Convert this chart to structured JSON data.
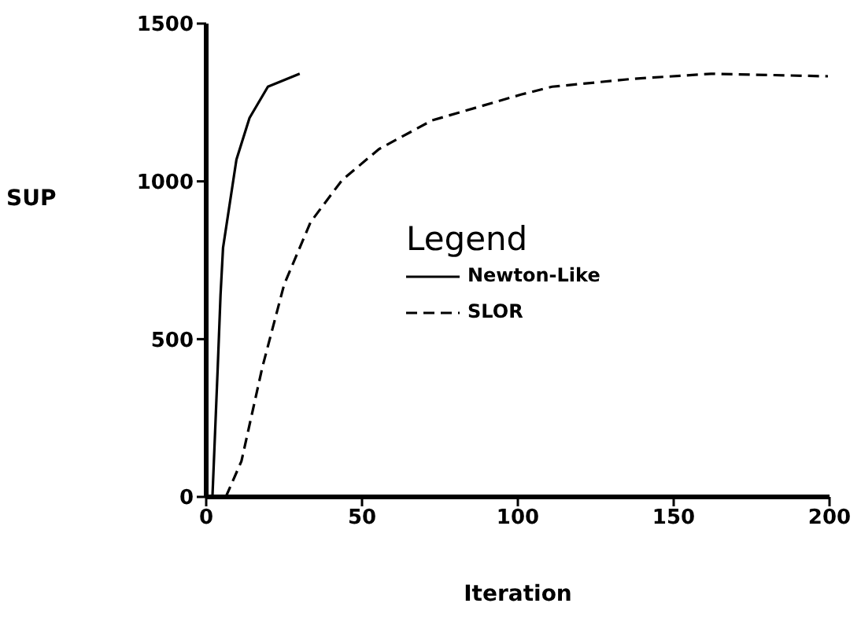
{
  "chart_data": {
    "type": "line",
    "xlabel": "Iteration",
    "ylabel": "SUP",
    "legend_title": "Legend",
    "legend": "center",
    "xlim": [
      0,
      200
    ],
    "ylim": [
      0,
      1500
    ],
    "xticks": [
      0,
      50,
      100,
      150,
      200
    ],
    "yticks": [
      0,
      500,
      1000,
      1500
    ],
    "grid": false,
    "marker": "none",
    "series": [
      {
        "name": "Newton-Like",
        "color": "#000000",
        "line_style": "solid",
        "x": [
          2,
          3.7,
          4.6,
          5.4,
          9.7,
          13.9,
          19.8,
          30
        ],
        "values": [
          0,
          410,
          640,
          789,
          1069,
          1201,
          1300,
          1341
        ]
      },
      {
        "name": "SLOR",
        "color": "#000000",
        "line_style": "dashed",
        "x": [
          6.3,
          11.3,
          18,
          25,
          33.5,
          43.6,
          55.4,
          72.4,
          101,
          111,
          137,
          162,
          199.5
        ],
        "values": [
          0,
          113,
          410,
          673,
          871,
          1004,
          1102,
          1193,
          1275,
          1300,
          1325,
          1341,
          1333
        ]
      }
    ]
  }
}
